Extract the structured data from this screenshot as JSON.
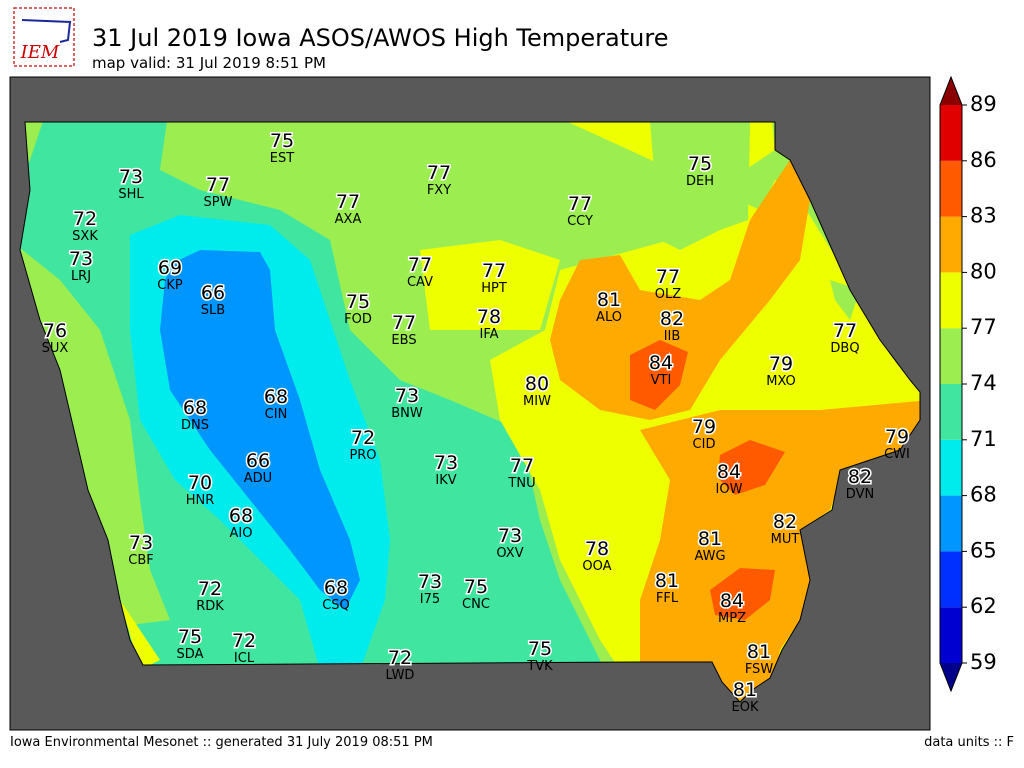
{
  "logo": "IEM",
  "title": "31 Jul 2019 Iowa ASOS/AWOS High Temperature",
  "subtitle": "map valid: 31 Jul 2019 8:51 PM",
  "footer_left": "Iowa Environmental Mesonet :: generated 31 July 2019 08:51 PM",
  "footer_right": "data units :: F",
  "colorbar": {
    "ticks": [
      59,
      62,
      65,
      68,
      71,
      74,
      77,
      80,
      83,
      86,
      89
    ],
    "colors": [
      "#0000d0",
      "#0030ff",
      "#0096ff",
      "#00ecec",
      "#40e6a0",
      "#9cee50",
      "#eeff00",
      "#ffaa00",
      "#ff5a00",
      "#e00000"
    ],
    "under_color": "#00008a",
    "over_color": "#8a0000"
  },
  "stations": [
    {
      "id": "EST",
      "value": 75
    },
    {
      "id": "SHL",
      "value": 73
    },
    {
      "id": "SPW",
      "value": 77
    },
    {
      "id": "SXK",
      "value": 72
    },
    {
      "id": "AXA",
      "value": 77
    },
    {
      "id": "FXY",
      "value": 77
    },
    {
      "id": "CCY",
      "value": 77
    },
    {
      "id": "DEH",
      "value": 75
    },
    {
      "id": "LRJ",
      "value": 73
    },
    {
      "id": "CKP",
      "value": 69
    },
    {
      "id": "SLB",
      "value": 66
    },
    {
      "id": "CAV",
      "value": 77
    },
    {
      "id": "HPT",
      "value": 77
    },
    {
      "id": "ALO",
      "value": 81
    },
    {
      "id": "OLZ",
      "value": 77
    },
    {
      "id": "SUX",
      "value": 76
    },
    {
      "id": "FOD",
      "value": 75
    },
    {
      "id": "EBS",
      "value": 77
    },
    {
      "id": "IFA",
      "value": 78
    },
    {
      "id": "IIB",
      "value": 82
    },
    {
      "id": "VTI",
      "value": 84
    },
    {
      "id": "DBQ",
      "value": 77
    },
    {
      "id": "MXO",
      "value": 79
    },
    {
      "id": "MIW",
      "value": 80
    },
    {
      "id": "BNW",
      "value": 73
    },
    {
      "id": "DNS",
      "value": 68
    },
    {
      "id": "CIN",
      "value": 68
    },
    {
      "id": "CID",
      "value": 79
    },
    {
      "id": "CWI",
      "value": 79
    },
    {
      "id": "PRO",
      "value": 72
    },
    {
      "id": "IKV",
      "value": 73
    },
    {
      "id": "TNU",
      "value": 77
    },
    {
      "id": "ADU",
      "value": 66
    },
    {
      "id": "IOW",
      "value": 84
    },
    {
      "id": "DVN",
      "value": 82
    },
    {
      "id": "HNR",
      "value": 70
    },
    {
      "id": "AIO",
      "value": 68
    },
    {
      "id": "OXV",
      "value": 73
    },
    {
      "id": "AWG",
      "value": 81
    },
    {
      "id": "MUT",
      "value": 82
    },
    {
      "id": "CBF",
      "value": 73
    },
    {
      "id": "OOA",
      "value": 78
    },
    {
      "id": "CSQ",
      "value": 68
    },
    {
      "id": "I75",
      "value": 73
    },
    {
      "id": "CNC",
      "value": 75
    },
    {
      "id": "RDK",
      "value": 72
    },
    {
      "id": "FFL",
      "value": 81
    },
    {
      "id": "MPZ",
      "value": 84
    },
    {
      "id": "SDA",
      "value": 75
    },
    {
      "id": "ICL",
      "value": 72
    },
    {
      "id": "LWD",
      "value": 72
    },
    {
      "id": "TVK",
      "value": 75
    },
    {
      "id": "FSW",
      "value": 81
    },
    {
      "id": "EOK",
      "value": 81
    }
  ]
}
